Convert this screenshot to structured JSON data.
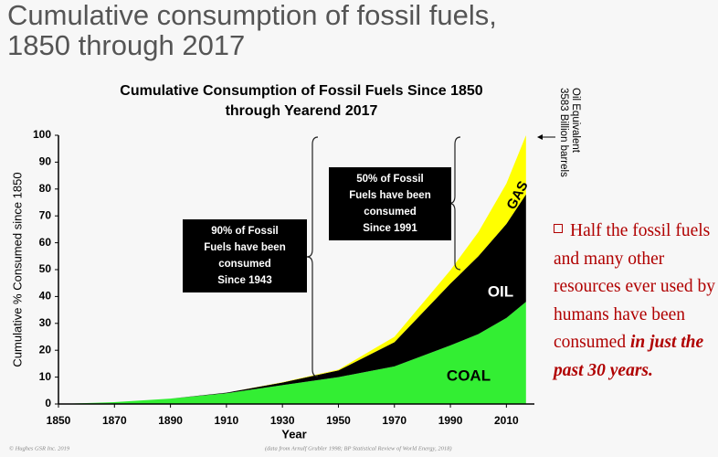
{
  "slide_title": "Cumulative consumption of  fossil fuels, 1850 through 2017",
  "chart_data": {
    "type": "stacked-area",
    "title": [
      "Cumulative Consumption of Fossil Fuels Since 1850",
      "through Yearend 2017"
    ],
    "x_label": "Year",
    "y_label": "Cumulative % Consumed since 1850",
    "x": [
      1850,
      1870,
      1890,
      1910,
      1930,
      1950,
      1970,
      1990,
      2000,
      2010,
      2017
    ],
    "series": [
      {
        "name": "COAL",
        "color": "#33ee33",
        "values": [
          0,
          0.7,
          2,
          4,
          7,
          10,
          14,
          21.8,
          26,
          32,
          38
        ]
      },
      {
        "name": "OIL",
        "color": "#000000",
        "values": [
          0,
          0,
          0,
          0.2,
          1,
          2.5,
          9,
          23,
          29,
          35,
          40
        ]
      },
      {
        "name": "GAS",
        "color": "#ffff00",
        "values": [
          0,
          0,
          0,
          0,
          0.1,
          0.3,
          2,
          5,
          9,
          15,
          22
        ]
      }
    ],
    "xlim": [
      1850,
      2020
    ],
    "xticks": [
      1850,
      1870,
      1890,
      1910,
      1930,
      1950,
      1970,
      1990,
      2010
    ],
    "ylim": [
      0,
      100
    ],
    "yticks": [
      0,
      10,
      20,
      30,
      40,
      50,
      60,
      70,
      80,
      90,
      100
    ],
    "grid": false,
    "annotations": [
      {
        "lines": [
          "90% of Fossil",
          "Fuels have been",
          "consumed",
          "Since 1943"
        ]
      },
      {
        "lines": [
          "50% of Fossil",
          "Fuels have been",
          "consumed",
          "Since 1991"
        ]
      }
    ],
    "total_label": [
      "3583 Billion barrels",
      "Oil Equivalent"
    ],
    "credit": "© Hughes GSR Inc. 2019",
    "source": "(data from Arnulf Grubler 1998; BP Statistical Review of World Energy, 2018)"
  },
  "side_note": {
    "text": "Half the fossil fuels and many other resources ever used by humans have been consumed ",
    "emphasis": "in just the past 30 years."
  }
}
